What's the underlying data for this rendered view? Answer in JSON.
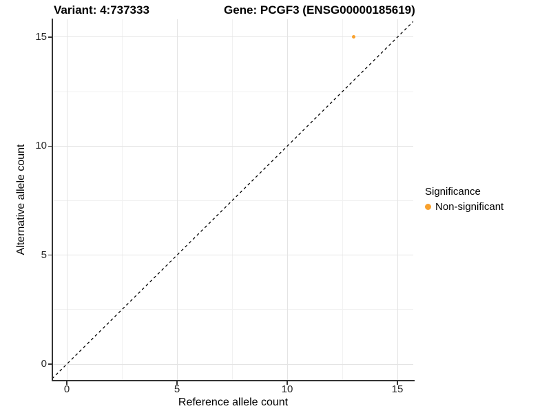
{
  "chart_data": {
    "type": "scatter",
    "titles": {
      "variant": "Variant: 4:737333",
      "gene": "Gene: PCGF3 (ENSG00000185619)"
    },
    "xlabel": "Reference allele count",
    "ylabel": "Alternative allele count",
    "xlim": [
      -0.75,
      15.75
    ],
    "ylim": [
      -0.75,
      15.75
    ],
    "x_ticks": [
      0,
      5,
      10,
      15
    ],
    "y_ticks": [
      0,
      5,
      10,
      15
    ],
    "grid": {
      "major": true,
      "minor": true
    },
    "points": [
      {
        "x": 13,
        "y": 15,
        "series": "Non-significant"
      }
    ],
    "identity_line": {
      "slope": 1,
      "intercept": 0,
      "style": "dashed",
      "color": "#000000"
    },
    "legend": {
      "title": "Significance",
      "position": "right",
      "entries": [
        {
          "label": "Non-significant",
          "color": "#F9A12D"
        }
      ]
    },
    "colors": {
      "point": "#F9A12D",
      "axis_line": "#333333",
      "tick_label": "#262626",
      "grid_major": "#E4E4E4",
      "grid_minor": "#F1F1F1",
      "background": "#FFFFFF"
    }
  }
}
